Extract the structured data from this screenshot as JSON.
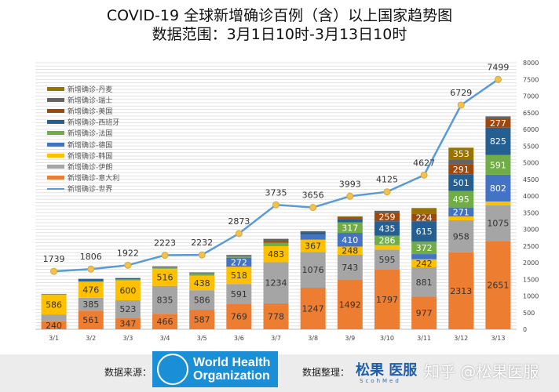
{
  "title": {
    "line1": "COVID-19 全球新增确诊百例（含）以上国家趋势图",
    "line2": "数据范围：3月1日10时-3月13日10时"
  },
  "chart_data": {
    "type": "bar",
    "stacked": true,
    "categories": [
      "3/1",
      "3/2",
      "3/3",
      "3/4",
      "3/5",
      "3/6",
      "3/7",
      "3/8",
      "3/9",
      "3/10",
      "3/11",
      "3/12",
      "3/13"
    ],
    "ylim": [
      0,
      8000
    ],
    "yticks": [
      0,
      500,
      1000,
      1500,
      2000,
      2500,
      3000,
      3500,
      4000,
      4500,
      5000,
      5500,
      6000,
      6500,
      7000,
      7500,
      8000
    ],
    "y_axis_side": "right",
    "grid": true,
    "legend_placement": "top-left",
    "series": [
      {
        "name": "新增确诊-意大利",
        "color": "#ed7d31",
        "values": [
          240,
          561,
          347,
          466,
          587,
          769,
          778,
          1247,
          1492,
          1797,
          977,
          2313,
          2651
        ]
      },
      {
        "name": "新增确诊-伊朗",
        "color": "#a5a5a5",
        "values": [
          205,
          385,
          523,
          835,
          586,
          591,
          1234,
          1076,
          743,
          595,
          881,
          958,
          1075
        ]
      },
      {
        "name": "新增确诊-韩国",
        "color": "#ffc000",
        "values": [
          586,
          476,
          600,
          516,
          438,
          518,
          483,
          367,
          248,
          131,
          242,
          114,
          110
        ]
      },
      {
        "name": "新增确诊-德国",
        "color": "#4472c4",
        "values": [
          0,
          0,
          0,
          0,
          0,
          272,
          0,
          156,
          410,
          0,
          157,
          271,
          802
        ]
      },
      {
        "name": "新增确诊-法国",
        "color": "#70ad47",
        "values": [
          20,
          20,
          28,
          39,
          66,
          40,
          105,
          0,
          317,
          286,
          372,
          495,
          591
        ]
      },
      {
        "name": "新增确诊-西班牙",
        "color": "#255e91",
        "values": [
          0,
          72,
          40,
          0,
          0,
          0,
          0,
          60,
          100,
          435,
          615,
          501,
          825
        ]
      },
      {
        "name": "新增确诊-美国",
        "color": "#9e480e",
        "values": [
          0,
          0,
          0,
          0,
          0,
          0,
          50,
          0,
          30,
          259,
          224,
          291,
          277
        ]
      },
      {
        "name": "新增确诊-瑞士",
        "color": "#636363",
        "values": [
          10,
          0,
          0,
          30,
          30,
          40,
          65,
          40,
          30,
          54,
          0,
          154,
          59
        ]
      },
      {
        "name": "新增确诊-丹麦",
        "color": "#997300",
        "values": [
          0,
          0,
          0,
          0,
          0,
          0,
          0,
          0,
          20,
          0,
          172,
          353,
          0
        ]
      }
    ],
    "line": {
      "name": "新增确诊-世界",
      "color": "#5b9bd5",
      "marker_color": "#f2c14e",
      "values": [
        1739,
        1806,
        1922,
        2223,
        2232,
        2873,
        3735,
        3656,
        3993,
        4125,
        4627,
        6729,
        7499
      ]
    }
  },
  "footer": {
    "source_label": "数据来源：",
    "who_line1": "World Health",
    "who_line2": "Organization",
    "compiled_label": "数据整理：",
    "brand": "松果 医服",
    "brand_sub": "ScohMed",
    "watermark": "知乎 @松果医服"
  }
}
